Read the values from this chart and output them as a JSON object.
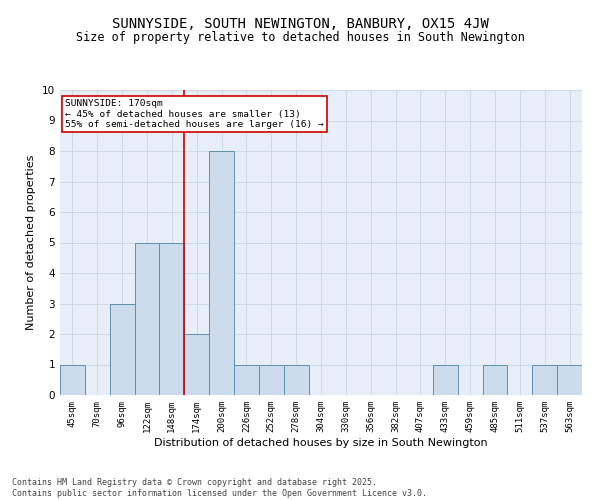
{
  "title": "SUNNYSIDE, SOUTH NEWINGTON, BANBURY, OX15 4JW",
  "subtitle": "Size of property relative to detached houses in South Newington",
  "xlabel": "Distribution of detached houses by size in South Newington",
  "ylabel": "Number of detached properties",
  "categories": [
    "45sqm",
    "70sqm",
    "96sqm",
    "122sqm",
    "148sqm",
    "174sqm",
    "200sqm",
    "226sqm",
    "252sqm",
    "278sqm",
    "304sqm",
    "330sqm",
    "356sqm",
    "382sqm",
    "407sqm",
    "433sqm",
    "459sqm",
    "485sqm",
    "511sqm",
    "537sqm",
    "563sqm"
  ],
  "values": [
    1,
    0,
    3,
    5,
    5,
    2,
    8,
    1,
    1,
    1,
    0,
    0,
    0,
    0,
    0,
    1,
    0,
    1,
    0,
    1,
    1
  ],
  "bar_color": "#ccdcec",
  "bar_edge_color": "#6090b0",
  "vline_color": "#cc0000",
  "annotation_text": "SUNNYSIDE: 170sqm\n← 45% of detached houses are smaller (13)\n55% of semi-detached houses are larger (16) →",
  "annotation_box_color": "#ffffff",
  "annotation_box_edge": "#cc0000",
  "ylim": [
    0,
    10
  ],
  "yticks": [
    0,
    1,
    2,
    3,
    4,
    5,
    6,
    7,
    8,
    9,
    10
  ],
  "grid_color": "#c8d4e4",
  "background_color": "#e8eef8",
  "footer": "Contains HM Land Registry data © Crown copyright and database right 2025.\nContains public sector information licensed under the Open Government Licence v3.0.",
  "title_fontsize": 10,
  "subtitle_fontsize": 8.5,
  "ylabel_fontsize": 8,
  "xlabel_fontsize": 8,
  "tick_fontsize": 6.5,
  "footer_fontsize": 6
}
